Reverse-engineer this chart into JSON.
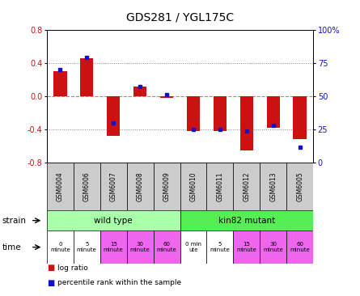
{
  "title": "GDS281 / YGL175C",
  "samples": [
    "GSM6004",
    "GSM6006",
    "GSM6007",
    "GSM6008",
    "GSM6009",
    "GSM6010",
    "GSM6011",
    "GSM6012",
    "GSM6013",
    "GSM6005"
  ],
  "log_ratios": [
    0.3,
    0.46,
    -0.48,
    0.12,
    -0.02,
    -0.42,
    -0.42,
    -0.65,
    -0.38,
    -0.52
  ],
  "percentile_ranks": [
    70,
    79,
    30,
    57,
    51,
    25,
    25,
    24,
    28,
    12
  ],
  "ylim_left": [
    -0.8,
    0.8
  ],
  "ylim_right": [
    0,
    100
  ],
  "yticks_left": [
    -0.8,
    -0.4,
    0.0,
    0.4,
    0.8
  ],
  "yticks_right": [
    0,
    25,
    50,
    75,
    100
  ],
  "ytick_labels_right": [
    "0",
    "25",
    "50",
    "75",
    "100%"
  ],
  "hlines_dotted": [
    0.4,
    -0.4
  ],
  "hline_zero": 0.0,
  "bar_color": "#cc1111",
  "dot_color": "#1111cc",
  "zero_line_color": "#ff6666",
  "dotted_line_color": "#888888",
  "sample_box_color": "#cccccc",
  "wild_type_color": "#aaffaa",
  "kin82_color": "#55ee55",
  "time_color_white": "#ffffff",
  "time_color_pink": "#ee66ee",
  "tick_label_color_left": "#cc1111",
  "tick_label_color_right": "#1111cc",
  "strain_wild": "wild type",
  "strain_kin82": "kin82 mutant",
  "n_wild": 5,
  "n_kin82": 5,
  "time_labels": [
    "0\nminute",
    "5\nminute",
    "15\nminute",
    "30\nminute",
    "60\nminute",
    "0 min\nute",
    "5\nminute",
    "15\nminute",
    "30\nminute",
    "60\nminute"
  ],
  "time_colors": [
    "#ffffff",
    "#ffffff",
    "#ee66ee",
    "#ee66ee",
    "#ee66ee",
    "#ffffff",
    "#ffffff",
    "#ee66ee",
    "#ee66ee",
    "#ee66ee"
  ],
  "legend_bar_color": "#cc1111",
  "legend_dot_color": "#1111cc",
  "legend_bar_label": "log ratio",
  "legend_dot_label": "percentile rank within the sample"
}
